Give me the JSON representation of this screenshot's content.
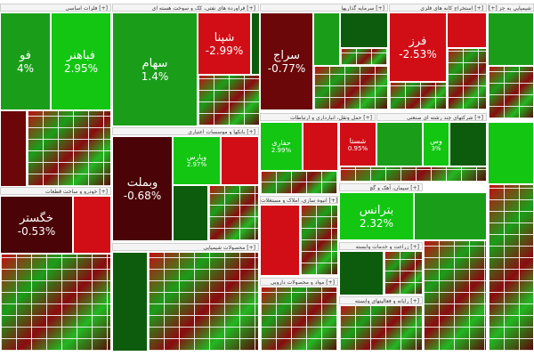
{
  "colors": {
    "bright_green": "#12c612",
    "green": "#1a9e1a",
    "dark_green": "#0d5c0d",
    "red": "#d10d16",
    "dark_red": "#6b0609",
    "maroon": "#4a0306",
    "header_bg": "#f4f4f4"
  },
  "sectors": {
    "s1": "فلزات اساسی [+]",
    "s2": "فراورده های نفتی، کک و سوخت هسته ای [+]",
    "s3": "سرمایه گذاریها [+]",
    "s4": "استخراج کانه های فلزی [+]",
    "s5": "[+] شیمیایی به جز",
    "s6": "بانکها و موسسات اعتباری [+]",
    "s7": "حمل ونقل، انبارداری و ارتباطات [+]",
    "s8": "شرکتهای چند رشته ای صنعتی [+]",
    "s9": "خودرو و ساخت قطعات [+]",
    "s10": "انبوه سازی، املاک و مستغلات [+]",
    "s11": "سیمان، آهک و گچ [+]",
    "s12": "محصولات شیمیایی [+]",
    "s13": "زراعت و خدمات وابسته [+]",
    "s14": "مواد و محصولات دارویی [+]",
    "s15": "رایانه و فعالیتهای وابسته [+]"
  },
  "tiles": {
    "fooladA": {
      "name": "فو",
      "pct": "4%"
    },
    "fabahonar": {
      "name": "فباهنر",
      "pct": "2.95%"
    },
    "shepna": {
      "name": "شپنا",
      "pct": "-2.99%"
    },
    "seraj": {
      "name": "سراج",
      "pct": "-0.77%"
    },
    "far": {
      "name": "فرز",
      "pct": "-2.53%"
    },
    "seh": {
      "name": "سهام",
      "pct": "1.4%"
    },
    "vbmellat": {
      "name": "وبملت",
      "pct": "-0.68%"
    },
    "vpars": {
      "name": "وپارس",
      "pct": "2.97%"
    },
    "haftari": {
      "name": "حفاری",
      "pct": "2.99%"
    },
    "khegostar": {
      "name": "خگستر",
      "pct": "-0.53%"
    },
    "zarin": {
      "name": "بترانس",
      "pct": "2.32%"
    },
    "shasta": {
      "name": "شستا",
      "pct": "0.95%"
    },
    "vs": {
      "name": "وس",
      "pct": "3%"
    }
  }
}
